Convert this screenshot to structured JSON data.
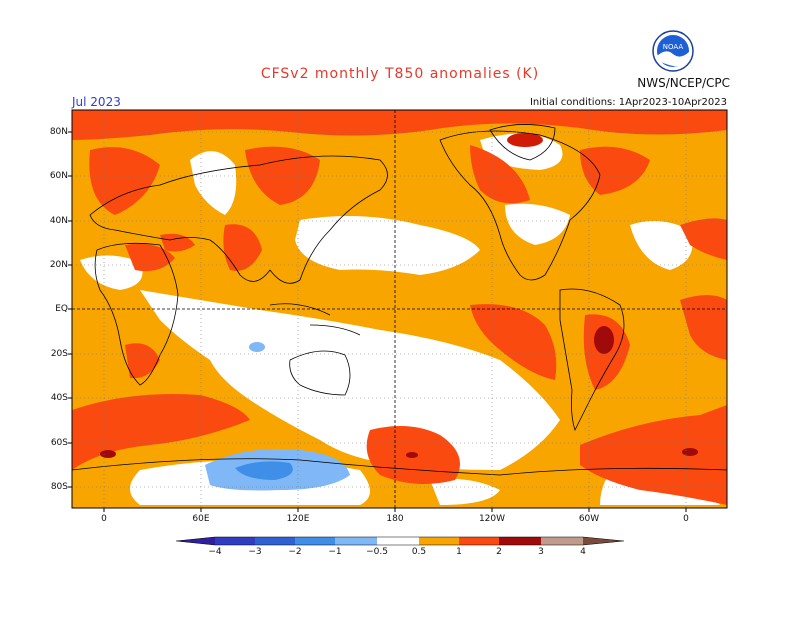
{
  "header": {
    "title": "CFSv2 monthly T850 anomalies (K)",
    "month": "Jul 2023",
    "initial_conditions": "Initial conditions: 1Apr2023-10Apr2023",
    "agency": "NWS/NCEP/CPC",
    "logo_text": "NOAA"
  },
  "map": {
    "lat_labels": [
      "80N",
      "60N",
      "40N",
      "20N",
      "EQ",
      "20S",
      "40S",
      "60S",
      "80S"
    ],
    "lon_labels": [
      "0",
      "60E",
      "120E",
      "180",
      "120W",
      "60W",
      "0"
    ]
  },
  "colorbar": {
    "tick_labels": [
      "−4",
      "−3",
      "−2",
      "−1",
      "−0.5",
      "0.5",
      "1",
      "2",
      "3",
      "4"
    ],
    "colors": {
      "lt_-4": "#3020a0",
      "-4_-3": "#2f3dc2",
      "-3_-2": "#2e62d4",
      "-2_-1": "#3f8ee8",
      "-1_-0.5": "#7fb7f7",
      "-0.5_0.5": "#ffffff",
      "0.5_1": "#f9a500",
      "1_2": "#fa4a10",
      "2_3": "#d11b06",
      "3_4": "#a00a0a",
      "4_5": "#c09a8c",
      "gt_5": "#7a4a3a"
    }
  }
}
